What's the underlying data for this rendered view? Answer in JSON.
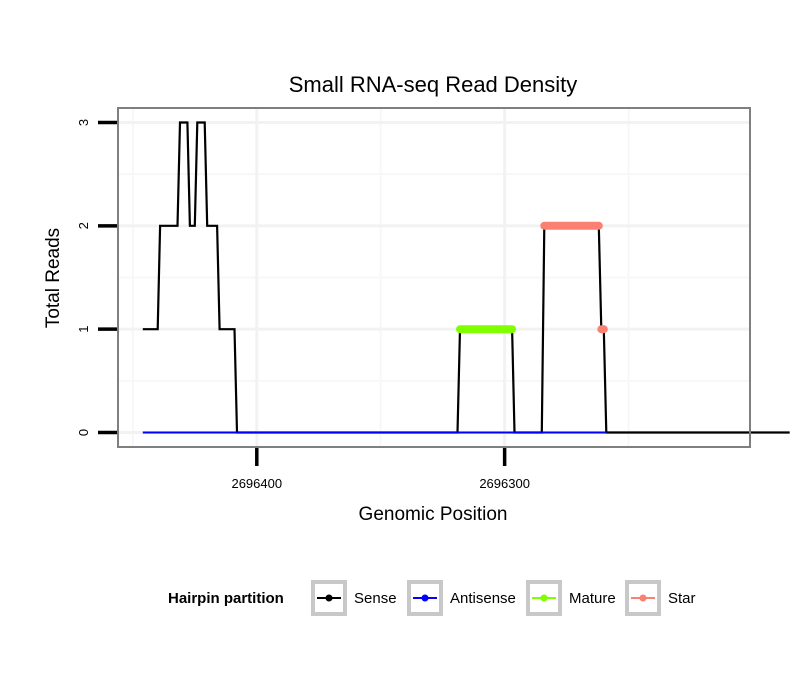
{
  "chart_data": {
    "type": "line",
    "title": "Small RNA-seq Read Density",
    "xlabel": "Genomic Position",
    "ylabel": "Total Reads",
    "x_reversed": true,
    "xlim": [
      2696456,
      2696201
    ],
    "ylim": [
      -0.14,
      3.14
    ],
    "x_ticks": [
      {
        "value": 2696400,
        "label": "2696400"
      },
      {
        "value": 2696300,
        "label": "2696300"
      }
    ],
    "x_minor_ticks": [
      2696450,
      2696350,
      2696250
    ],
    "y_ticks": [
      {
        "value": 0,
        "label": "0"
      },
      {
        "value": 1,
        "label": "1"
      },
      {
        "value": 2,
        "label": "2"
      },
      {
        "value": 3,
        "label": "3"
      }
    ],
    "y_minor_ticks": [
      0.5,
      1.5,
      2.5
    ],
    "grid": true,
    "legend": {
      "title": "Hairpin partition",
      "position": "bottom",
      "entries": [
        {
          "label": "Sense",
          "color": "#000000"
        },
        {
          "label": "Antisense",
          "color": "#0000ff"
        },
        {
          "label": "Mature",
          "color": "#7fff00"
        },
        {
          "label": "Star",
          "color": "#fa8072"
        }
      ]
    },
    "series": [
      {
        "name": "Sense",
        "color": "#000000",
        "points": [
          [
            2696446,
            1
          ],
          [
            2696440,
            1
          ],
          [
            2696439,
            2
          ],
          [
            2696432,
            2
          ],
          [
            2696431,
            3
          ],
          [
            2696428,
            3
          ],
          [
            2696427,
            2
          ],
          [
            2696425,
            2
          ],
          [
            2696424,
            3
          ],
          [
            2696421,
            3
          ],
          [
            2696420,
            2
          ],
          [
            2696416,
            2
          ],
          [
            2696415,
            1
          ],
          [
            2696409,
            1
          ],
          [
            2696408,
            0
          ],
          [
            2696319,
            0
          ],
          [
            2696318,
            1
          ],
          [
            2696297,
            1
          ],
          [
            2696296,
            0
          ],
          [
            2696285,
            0
          ],
          [
            2696284,
            2
          ],
          [
            2696262,
            2
          ],
          [
            2696261,
            1
          ],
          [
            2696260,
            1
          ],
          [
            2696259,
            0
          ],
          [
            2696185,
            0
          ]
        ]
      },
      {
        "name": "Antisense",
        "color": "#0000ff",
        "points": [
          [
            2696446,
            0
          ],
          [
            2696259,
            0
          ]
        ]
      },
      {
        "name": "Mature",
        "color": "#7fff00",
        "points": [
          [
            2696318,
            1
          ],
          [
            2696297,
            1
          ]
        ]
      },
      {
        "name": "Star",
        "color": "#fa8072",
        "points": [
          [
            2696284,
            2
          ],
          [
            2696262,
            2
          ]
        ],
        "extra_points": [
          [
            2696261,
            1
          ],
          [
            2696260,
            1
          ]
        ]
      }
    ]
  }
}
